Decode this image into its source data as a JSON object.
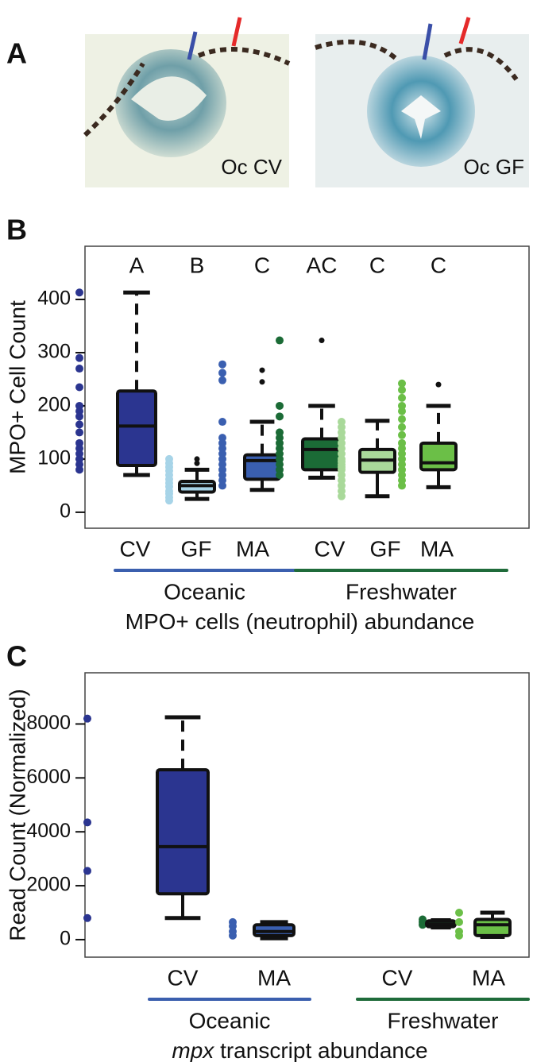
{
  "panel_a": {
    "label": "A",
    "images": [
      "Oc CV",
      "Oc GF"
    ]
  },
  "chart_data": [
    {
      "type": "box",
      "panel": "B",
      "ylabel": "MPO+ Cell Count",
      "xlabel": "MPO+ cells (neutrophil) abundance",
      "categories": [
        "CV",
        "GF",
        "MA",
        "CV",
        "GF",
        "MA"
      ],
      "significance_letters": [
        "A",
        "B",
        "C",
        "AC",
        "C",
        "C"
      ],
      "groups": [
        {
          "name": "Oceanic",
          "color": "#3b5fae"
        },
        {
          "name": "Freshwater",
          "color": "#1f6b3a"
        }
      ],
      "ylim": [
        -30,
        500
      ],
      "yticks": [
        0,
        100,
        200,
        300,
        400
      ],
      "boxes": [
        {
          "color": "#2b3590",
          "whisker_low": 70,
          "q1": 88,
          "median": 162,
          "q3": 228,
          "whisker_high": 413,
          "outliers": [],
          "points": [
            413,
            290,
            270,
            235,
            200,
            190,
            180,
            165,
            150,
            130,
            120,
            110,
            100,
            90,
            80
          ]
        },
        {
          "color": "#a7d4e8",
          "whisker_low": 25,
          "q1": 38,
          "median": 50,
          "q3": 58,
          "whisker_high": 80,
          "outliers": [
            100,
            92
          ],
          "points": [
            100,
            92,
            85,
            78,
            70,
            62,
            55,
            48,
            40,
            35,
            28,
            22
          ]
        },
        {
          "color": "#3a5fb0",
          "whisker_low": 42,
          "q1": 62,
          "median": 97,
          "q3": 108,
          "whisker_high": 170,
          "outliers": [
            267,
            245
          ],
          "points": [
            278,
            262,
            248,
            170,
            140,
            130,
            120,
            110,
            100,
            90,
            80,
            70,
            60,
            50
          ]
        },
        {
          "color": "#1b6b36",
          "whisker_low": 65,
          "q1": 80,
          "median": 118,
          "q3": 138,
          "whisker_high": 200,
          "outliers": [
            323
          ],
          "points": [
            323,
            200,
            180,
            150,
            140,
            130,
            120,
            110,
            100,
            90,
            80,
            70
          ]
        },
        {
          "color": "#a9d99a",
          "whisker_low": 30,
          "q1": 75,
          "median": 98,
          "q3": 118,
          "whisker_high": 172,
          "outliers": [],
          "points": [
            170,
            160,
            150,
            140,
            130,
            120,
            110,
            100,
            95,
            90,
            85,
            80,
            70,
            60,
            50,
            40,
            30
          ]
        },
        {
          "color": "#6bbf47",
          "whisker_low": 47,
          "q1": 80,
          "median": 93,
          "q3": 130,
          "whisker_high": 200,
          "outliers": [
            240
          ],
          "points": [
            242,
            230,
            215,
            200,
            190,
            175,
            160,
            145,
            130,
            120,
            110,
            100,
            90,
            80,
            70,
            60,
            50
          ]
        }
      ]
    },
    {
      "type": "box",
      "panel": "C",
      "ylabel": "Read Count (Normalized)",
      "xlabel_italic": "mpx",
      "xlabel": "transcript abundance",
      "categories": [
        "CV",
        "MA",
        "CV",
        "MA"
      ],
      "groups": [
        {
          "name": "Oceanic",
          "color": "#3b5fae"
        },
        {
          "name": "Freshwater",
          "color": "#1f6b3a"
        }
      ],
      "ylim": [
        -650,
        9900
      ],
      "yticks": [
        0,
        2000,
        4000,
        6000,
        8000
      ],
      "boxes": [
        {
          "color": "#2b3590",
          "whisker_low": 800,
          "q1": 1700,
          "median": 3450,
          "q3": 6300,
          "whisker_high": 8250,
          "outliers": [],
          "points": [
            8200,
            4350,
            2550,
            800
          ]
        },
        {
          "color": "#3a5fb0",
          "whisker_low": 50,
          "q1": 150,
          "median": 300,
          "q3": 550,
          "whisker_high": 650,
          "outliers": [],
          "points": [
            650,
            500,
            300,
            150
          ]
        },
        {
          "color": "#1b6b36",
          "whisker_low": 450,
          "q1": 480,
          "median": 580,
          "q3": 700,
          "whisker_high": 720,
          "outliers": [],
          "points": [
            750,
            650,
            550
          ]
        },
        {
          "color": "#6bbf47",
          "whisker_low": 100,
          "q1": 150,
          "median": 550,
          "q3": 750,
          "whisker_high": 1000,
          "outliers": [],
          "points": [
            1000,
            650,
            300,
            150
          ]
        }
      ]
    }
  ]
}
